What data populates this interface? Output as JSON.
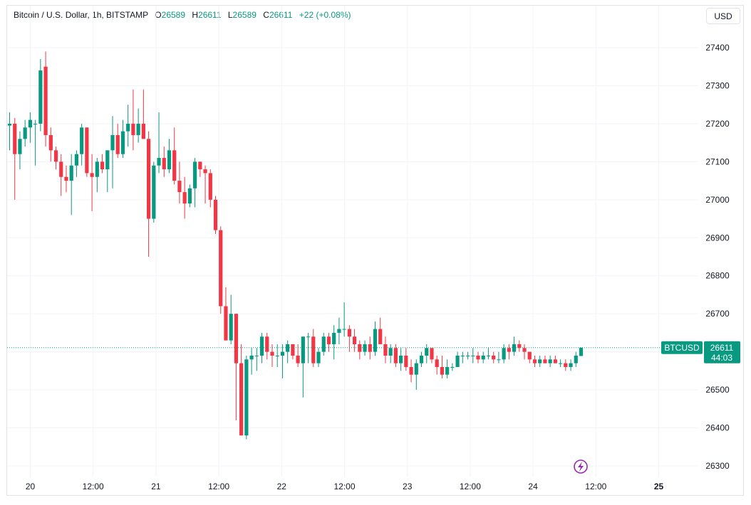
{
  "legend": {
    "symbol": "Bitcoin / U.S. Dollar, 1h, BITSTAMP",
    "o_label": "O",
    "o": "26589",
    "h_label": "H",
    "h": "26611",
    "l_label": "L",
    "l": "26589",
    "c_label": "C",
    "c": "26611",
    "change": "+22 (+0.08%)"
  },
  "currency_button": "USD",
  "price_label": {
    "symbol": "BTCUSD",
    "price": "26611",
    "countdown": "44:03"
  },
  "colors": {
    "up": "#089981",
    "down": "#f23645",
    "grid": "#f0f3fa",
    "accent": "#9c27b0"
  },
  "icons": {
    "flash": "lightning-icon"
  },
  "chart_data": {
    "type": "candlestick",
    "yaxis": {
      "ticks": [
        27400,
        27300,
        27200,
        27100,
        27000,
        26900,
        26800,
        26700,
        26600,
        26500,
        26400,
        26300
      ],
      "range": [
        26270,
        27470
      ]
    },
    "xaxis": {
      "ticks": [
        "20",
        "12:00",
        "21",
        "12:00",
        "22",
        "12:00",
        "23",
        "12:00",
        "24",
        "12:00",
        "25"
      ]
    },
    "last_price": 26611,
    "candles": [
      [
        27195,
        27230,
        27130,
        27200
      ],
      [
        27200,
        27215,
        27000,
        27120
      ],
      [
        27120,
        27180,
        27080,
        27160
      ],
      [
        27160,
        27210,
        27140,
        27190
      ],
      [
        27190,
        27230,
        27150,
        27210
      ],
      [
        27200,
        27210,
        27090,
        27200
      ],
      [
        27200,
        27370,
        27180,
        27340
      ],
      [
        27350,
        27390,
        27140,
        27170
      ],
      [
        27170,
        27190,
        27100,
        27130
      ],
      [
        27130,
        27140,
        27080,
        27100
      ],
      [
        27100,
        27120,
        27010,
        27060
      ],
      [
        27060,
        27090,
        27020,
        27050
      ],
      [
        27050,
        27120,
        26960,
        27090
      ],
      [
        27090,
        27130,
        27060,
        27120
      ],
      [
        27120,
        27200,
        27090,
        27190
      ],
      [
        27190,
        27190,
        27060,
        27070
      ],
      [
        27070,
        27120,
        26970,
        27060
      ],
      [
        27060,
        27110,
        27020,
        27100
      ],
      [
        27100,
        27120,
        27070,
        27080
      ],
      [
        27080,
        27130,
        27020,
        27130
      ],
      [
        27130,
        27220,
        27030,
        27170
      ],
      [
        27170,
        27200,
        27110,
        27120
      ],
      [
        27120,
        27210,
        27110,
        27180
      ],
      [
        27180,
        27250,
        27140,
        27200
      ],
      [
        27200,
        27290,
        27130,
        27170
      ],
      [
        27170,
        27240,
        27150,
        27200
      ],
      [
        27200,
        27290,
        27170,
        27160
      ],
      [
        27160,
        27180,
        26850,
        26950
      ],
      [
        26950,
        27100,
        26940,
        27090
      ],
      [
        27090,
        27230,
        27070,
        27110
      ],
      [
        27110,
        27140,
        27060,
        27080
      ],
      [
        27080,
        27160,
        27070,
        27130
      ],
      [
        27130,
        27190,
        27040,
        27050
      ],
      [
        27050,
        27100,
        26990,
        27020
      ],
      [
        27020,
        27060,
        26950,
        26990
      ],
      [
        26990,
        27040,
        26980,
        27030
      ],
      [
        27030,
        27110,
        26980,
        27100
      ],
      [
        27100,
        27100,
        27060,
        27080
      ],
      [
        27080,
        27090,
        26990,
        27070
      ],
      [
        27070,
        27080,
        26980,
        27000
      ],
      [
        27000,
        27010,
        26910,
        26920
      ],
      [
        26920,
        26930,
        26700,
        26720
      ],
      [
        26720,
        26770,
        26630,
        26630
      ],
      [
        26630,
        26750,
        26620,
        26700
      ],
      [
        26700,
        26700,
        26420,
        26570
      ],
      [
        26570,
        26620,
        26380,
        26380
      ],
      [
        26380,
        26590,
        26370,
        26580
      ],
      [
        26580,
        26610,
        26540,
        26590
      ],
      [
        26590,
        26610,
        26550,
        26590
      ],
      [
        26590,
        26650,
        26570,
        26640
      ],
      [
        26640,
        26650,
        26580,
        26600
      ],
      [
        26600,
        26620,
        26560,
        26590
      ],
      [
        26590,
        26620,
        26560,
        26590
      ],
      [
        26590,
        26620,
        26530,
        26600
      ],
      [
        26600,
        26630,
        26570,
        26620
      ],
      [
        26620,
        26620,
        26580,
        26590
      ],
      [
        26590,
        26620,
        26560,
        26570
      ],
      [
        26570,
        26640,
        26480,
        26640
      ],
      [
        26640,
        26650,
        26570,
        26640
      ],
      [
        26640,
        26660,
        26560,
        26570
      ],
      [
        26570,
        26610,
        26560,
        26600
      ],
      [
        26600,
        26650,
        26590,
        26640
      ],
      [
        26640,
        26650,
        26600,
        26620
      ],
      [
        26620,
        26670,
        26580,
        26650
      ],
      [
        26650,
        26690,
        26620,
        26660
      ],
      [
        26660,
        26730,
        26640,
        26660
      ],
      [
        26660,
        26670,
        26600,
        26640
      ],
      [
        26640,
        26660,
        26600,
        26620
      ],
      [
        26620,
        26630,
        26580,
        26600
      ],
      [
        26600,
        26630,
        26590,
        26620
      ],
      [
        26620,
        26640,
        26580,
        26600
      ],
      [
        26600,
        26680,
        26590,
        26660
      ],
      [
        26660,
        26690,
        26620,
        26620
      ],
      [
        26620,
        26640,
        26570,
        26590
      ],
      [
        26590,
        26620,
        26570,
        26610
      ],
      [
        26610,
        26620,
        26560,
        26570
      ],
      [
        26570,
        26610,
        26550,
        26590
      ],
      [
        26590,
        26610,
        26550,
        26560
      ],
      [
        26560,
        26580,
        26520,
        26540
      ],
      [
        26540,
        26580,
        26500,
        26570
      ],
      [
        26570,
        26600,
        26560,
        26590
      ],
      [
        26590,
        26620,
        26570,
        26610
      ],
      [
        26610,
        26610,
        26570,
        26580
      ],
      [
        26580,
        26590,
        26540,
        26560
      ],
      [
        26560,
        26590,
        26530,
        26540
      ],
      [
        26540,
        26580,
        26530,
        26560
      ],
      [
        26560,
        26570,
        26550,
        26560
      ],
      [
        26560,
        26600,
        26560,
        26590
      ],
      [
        26590,
        26600,
        26570,
        26590
      ],
      [
        26590,
        26600,
        26580,
        26590
      ],
      [
        26590,
        26610,
        26570,
        26590
      ],
      [
        26590,
        26600,
        26570,
        26580
      ],
      [
        26580,
        26600,
        26570,
        26590
      ],
      [
        26590,
        26610,
        26580,
        26590
      ],
      [
        26590,
        26600,
        26570,
        26580
      ],
      [
        26580,
        26600,
        26570,
        26580
      ],
      [
        26580,
        26620,
        26570,
        26610
      ],
      [
        26610,
        26620,
        26580,
        26600
      ],
      [
        26600,
        26640,
        26590,
        26620
      ],
      [
        26620,
        26630,
        26600,
        26610
      ],
      [
        26610,
        26620,
        26580,
        26600
      ],
      [
        26600,
        26600,
        26570,
        26580
      ],
      [
        26580,
        26590,
        26560,
        26570
      ],
      [
        26570,
        26590,
        26560,
        26580
      ],
      [
        26580,
        26590,
        26570,
        26570
      ],
      [
        26570,
        26590,
        26560,
        26580
      ],
      [
        26580,
        26590,
        26570,
        26570
      ],
      [
        26570,
        26580,
        26560,
        26570
      ],
      [
        26570,
        26580,
        26550,
        26560
      ],
      [
        26560,
        26580,
        26550,
        26570
      ],
      [
        26570,
        26600,
        26560,
        26590
      ],
      [
        26589,
        26611,
        26589,
        26611
      ]
    ]
  }
}
